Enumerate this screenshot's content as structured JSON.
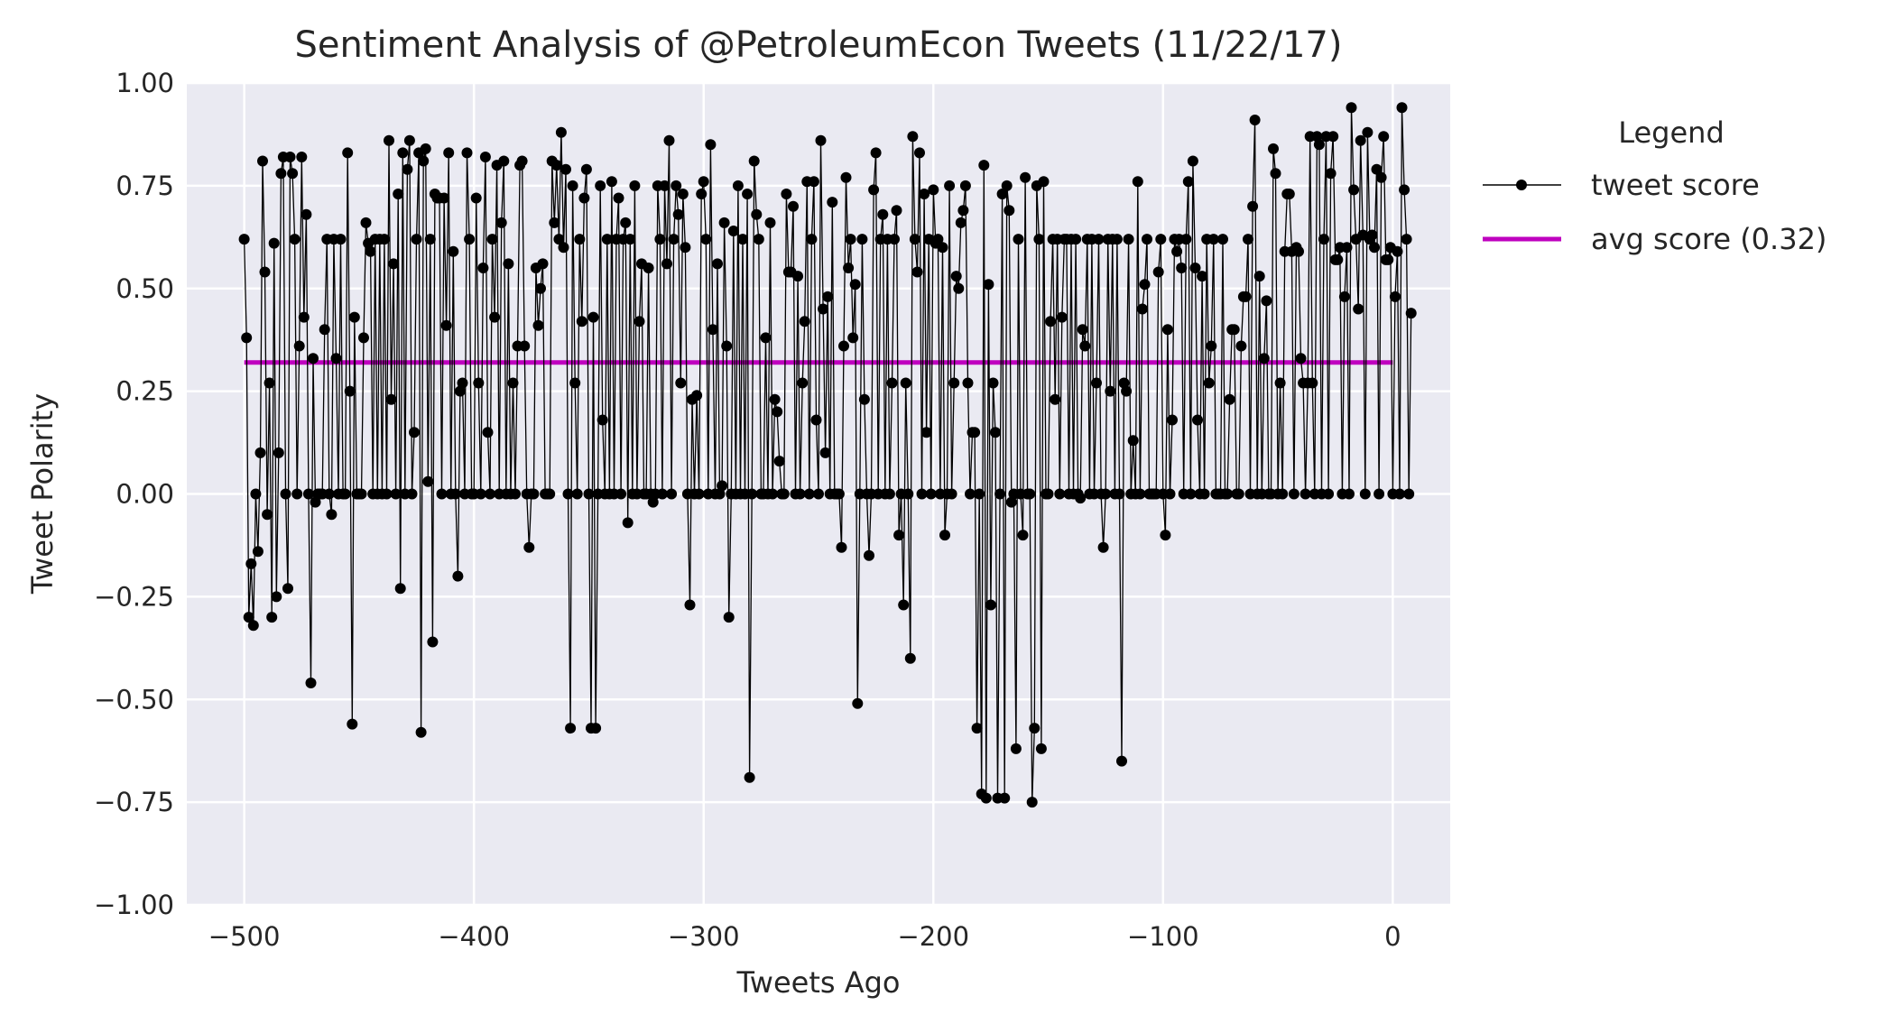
{
  "chart_data": {
    "type": "line",
    "title": "Sentiment Analysis of @PetroleumEcon Tweets (11/22/17)",
    "xlabel": "Tweets Ago",
    "ylabel": "Tweet Polarity",
    "xlim": [
      -525,
      25
    ],
    "ylim": [
      -1.0,
      1.0
    ],
    "xticks": [
      -500,
      -400,
      -300,
      -200,
      -100,
      0
    ],
    "xtick_labels": [
      "−500",
      "−400",
      "−300",
      "−200",
      "−100",
      "0"
    ],
    "yticks": [
      1.0,
      0.75,
      0.5,
      0.25,
      0.0,
      -0.25,
      -0.5,
      -0.75,
      -1.0
    ],
    "ytick_labels": [
      "1.00",
      "0.75",
      "0.50",
      "0.25",
      "0.00",
      "−0.25",
      "−0.50",
      "−0.75",
      "−1.00"
    ],
    "grid": true,
    "legend": {
      "title": "Legend",
      "placement": "outside upper right",
      "entries": [
        "tweet score",
        "avg score (0.32)"
      ]
    },
    "colors": {
      "background": "#eaeaf2",
      "grid": "#ffffff",
      "tweet_score": "#000000",
      "avg_score": "#bf00bf"
    },
    "series": [
      {
        "name": "tweet score",
        "style": "line-with-markers",
        "x_start": -500,
        "x_step": 1,
        "values": [
          0.62,
          0.38,
          -0.3,
          -0.17,
          -0.32,
          0.0,
          -0.14,
          0.1,
          0.81,
          0.54,
          -0.05,
          0.27,
          -0.3,
          0.61,
          -0.25,
          0.1,
          0.78,
          0.82,
          0.0,
          -0.23,
          0.82,
          0.78,
          0.62,
          0.0,
          0.36,
          0.82,
          0.43,
          0.68,
          0.0,
          -0.46,
          0.33,
          -0.02,
          0.0,
          0.0,
          0.0,
          0.4,
          0.62,
          0.0,
          -0.05,
          0.62,
          0.33,
          0.0,
          0.62,
          0.0,
          0.0,
          0.83,
          0.25,
          -0.56,
          0.43,
          0.0,
          0.0,
          0.0,
          0.38,
          0.66,
          0.61,
          0.59,
          0.0,
          0.62,
          0.0,
          0.62,
          0.0,
          0.62,
          0.0,
          0.86,
          0.23,
          0.56,
          0.0,
          0.73,
          -0.23,
          0.83,
          0.0,
          0.79,
          0.86,
          0.0,
          0.15,
          0.62,
          0.83,
          -0.58,
          0.81,
          0.84,
          0.03,
          0.62,
          -0.36,
          0.73,
          0.72,
          0.72,
          0.0,
          0.72,
          0.41,
          0.83,
          0.0,
          0.59,
          0.0,
          -0.2,
          0.25,
          0.27,
          0.0,
          0.83,
          0.62,
          0.0,
          0.0,
          0.72,
          0.27,
          0.0,
          0.55,
          0.82,
          0.15,
          0.0,
          0.62,
          0.43,
          0.8,
          0.0,
          0.66,
          0.81,
          0.0,
          0.56,
          0.0,
          0.27,
          0.0,
          0.36,
          0.8,
          0.81,
          0.36,
          0.0,
          -0.13,
          0.0,
          0.0,
          0.55,
          0.41,
          0.5,
          0.56,
          0.0,
          0.0,
          0.0,
          0.81,
          0.66,
          0.8,
          0.62,
          0.88,
          0.6,
          0.79,
          0.0,
          -0.57,
          0.75,
          0.27,
          0.0,
          0.62,
          0.42,
          0.72,
          0.79,
          0.0,
          -0.57,
          0.43,
          -0.57,
          0.0,
          0.75,
          0.18,
          0.0,
          0.62,
          0.0,
          0.76,
          0.0,
          0.62,
          0.72,
          0.0,
          0.62,
          0.66,
          -0.07,
          0.62,
          0.0,
          0.75,
          0.0,
          0.42,
          0.56,
          0.0,
          0.0,
          0.55,
          0.0,
          -0.02,
          0.0,
          0.75,
          0.62,
          0.0,
          0.75,
          0.56,
          0.86,
          0.0,
          0.62,
          0.75,
          0.68,
          0.27,
          0.73,
          0.6,
          0.0,
          -0.27,
          0.23,
          0.0,
          0.24,
          0.0,
          0.73,
          0.76,
          0.62,
          0.0,
          0.85,
          0.4,
          0.0,
          0.56,
          0.0,
          0.02,
          0.66,
          0.36,
          -0.3,
          0.0,
          0.64,
          0.0,
          0.75,
          0.0,
          0.62,
          0.0,
          0.73,
          -0.69,
          0.0,
          0.81,
          0.68,
          0.62,
          0.0,
          0.0,
          0.38,
          0.0,
          0.66,
          0.0,
          0.23,
          0.2,
          0.08,
          0.0,
          0.0,
          0.73,
          0.54,
          0.54,
          0.7,
          0.0,
          0.53,
          0.0,
          0.27,
          0.42,
          0.76,
          0.0,
          0.62,
          0.76,
          0.18,
          0.0,
          0.86,
          0.45,
          0.1,
          0.48,
          0.0,
          0.71,
          0.0,
          0.0,
          0.0,
          -0.13,
          0.36,
          0.77,
          0.55,
          0.62,
          0.38,
          0.51,
          -0.51,
          0.0,
          0.62,
          0.23,
          0.0,
          -0.15,
          0.0,
          0.74,
          0.83,
          0.0,
          0.62,
          0.68,
          0.0,
          0.62,
          0.0,
          0.27,
          0.62,
          0.69,
          -0.1,
          0.0,
          -0.27,
          0.27,
          0.0,
          -0.4,
          0.87,
          0.62,
          0.54,
          0.83,
          0.0,
          0.73,
          0.15,
          0.62,
          0.0,
          0.74,
          0.61,
          0.62,
          0.0,
          0.6,
          -0.1,
          0.0,
          0.75,
          0.0,
          0.27,
          0.53,
          0.5,
          0.66,
          0.69,
          0.75,
          0.27,
          0.0,
          0.15,
          0.15,
          -0.57,
          0.0,
          -0.73,
          0.8,
          -0.74,
          0.51,
          -0.27,
          0.27,
          0.15,
          -0.74,
          0.0,
          0.73,
          -0.74,
          0.75,
          0.69,
          -0.02,
          0.0,
          -0.62,
          0.62,
          0.0,
          -0.1,
          0.77,
          0.0,
          0.0,
          -0.75,
          -0.57,
          0.75,
          0.62,
          -0.62,
          0.76,
          0.0,
          0.0,
          0.42,
          0.62,
          0.23,
          0.62,
          0.0,
          0.43,
          0.62,
          0.62,
          0.0,
          0.62,
          0.0,
          0.62,
          0.0,
          -0.01,
          0.4,
          0.36,
          0.62,
          0.0,
          0.62,
          0.0,
          0.27,
          0.62,
          0.0,
          -0.13,
          0.0,
          0.62,
          0.25,
          0.62,
          0.0,
          0.62,
          0.0,
          -0.65,
          0.27,
          0.25,
          0.62,
          0.0,
          0.13,
          0.0,
          0.76,
          0.0,
          0.45,
          0.51,
          0.62,
          0.0,
          0.0,
          0.0,
          0.0,
          0.54,
          0.62,
          0.0,
          -0.1,
          0.4,
          0.0,
          0.18,
          0.62,
          0.59,
          0.62,
          0.55,
          0.0,
          0.62,
          0.76,
          0.0,
          0.81,
          0.55,
          0.18,
          0.0,
          0.53,
          0.0,
          0.62,
          0.27,
          0.36,
          0.62,
          0.0,
          0.0,
          0.0,
          0.62,
          0.0,
          0.0,
          0.23,
          0.4,
          0.4,
          0.0,
          0.0,
          0.36,
          0.48,
          0.48,
          0.62,
          0.0,
          0.7,
          0.91,
          0.0,
          0.53,
          0.0,
          0.33,
          0.47,
          0.0,
          0.0,
          0.84,
          0.78,
          0.0,
          0.27,
          0.0,
          0.59,
          0.73,
          0.73,
          0.59,
          0.0,
          0.6,
          0.59,
          0.33,
          0.27,
          0.0,
          0.27,
          0.87,
          0.27,
          0.0,
          0.87,
          0.85,
          0.0,
          0.62,
          0.87,
          0.0,
          0.78,
          0.87,
          0.57,
          0.57,
          0.6,
          0.0,
          0.48,
          0.6,
          0.0,
          0.94,
          0.74,
          0.62,
          0.45,
          0.86,
          0.63,
          0.0,
          0.88,
          0.62,
          0.63,
          0.6,
          0.79,
          0.0,
          0.77,
          0.87,
          0.57,
          0.57,
          0.6,
          0.0,
          0.48,
          0.59,
          0.0,
          0.94,
          0.74,
          0.62,
          0.0,
          0.44
        ]
      },
      {
        "name": "avg score (0.32)",
        "style": "line",
        "x": [
          -500,
          0
        ],
        "values": [
          0.32,
          0.32
        ]
      }
    ]
  }
}
